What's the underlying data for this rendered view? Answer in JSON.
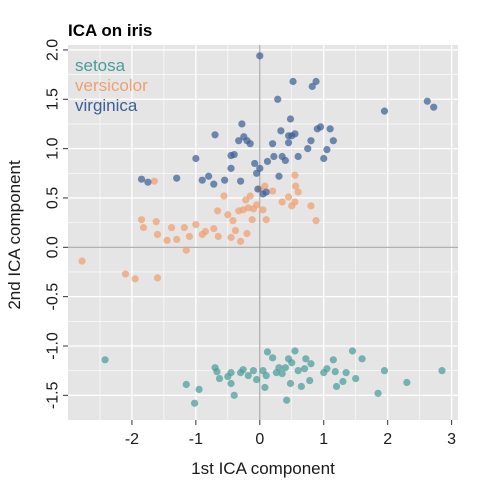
{
  "chart_data": {
    "type": "scatter",
    "title": "ICA on iris",
    "xlabel": "1st ICA component",
    "ylabel": "2nd ICA component",
    "xlim": [
      -3.0,
      3.1
    ],
    "ylim": [
      -1.75,
      2.05
    ],
    "xticks": [
      -2,
      -1,
      0,
      1,
      2,
      3
    ],
    "xtick_labels": [
      "-2",
      "-1",
      "0",
      "1",
      "2",
      "3"
    ],
    "yticks": [
      -1.5,
      -1.0,
      -0.5,
      0.0,
      0.5,
      1.0,
      1.5,
      2.0
    ],
    "ytick_labels": [
      "-1.5",
      "-1.0",
      "-0.5",
      "0.0",
      "0.5",
      "1.0",
      "1.5",
      "2.0"
    ],
    "grid": true,
    "reference_lines": {
      "x": 0,
      "y": 0
    },
    "legend_position": "top-left",
    "colors": {
      "panel": "#e5e5e5",
      "grid": "#ffffff",
      "reference": "#999999"
    },
    "series": [
      {
        "name": "setosa",
        "color": "#4a9c9a",
        "points": [
          [
            -2.42,
            -1.14
          ],
          [
            -1.15,
            -1.39
          ],
          [
            -1.02,
            -1.58
          ],
          [
            -0.95,
            -1.44
          ],
          [
            -0.7,
            -1.22
          ],
          [
            -0.67,
            -1.26
          ],
          [
            -0.63,
            -1.33
          ],
          [
            -0.5,
            -1.31
          ],
          [
            -0.45,
            -1.27
          ],
          [
            -0.45,
            -1.38
          ],
          [
            -0.4,
            -1.5
          ],
          [
            -0.3,
            -1.27
          ],
          [
            -0.26,
            -1.24
          ],
          [
            -0.18,
            -1.3
          ],
          [
            -0.1,
            -1.25
          ],
          [
            -0.05,
            -1.34
          ],
          [
            0.05,
            -1.25
          ],
          [
            0.08,
            -1.42
          ],
          [
            0.1,
            -1.3
          ],
          [
            0.12,
            -1.06
          ],
          [
            0.2,
            -1.12
          ],
          [
            0.26,
            -1.27
          ],
          [
            0.3,
            -1.22
          ],
          [
            0.35,
            -1.28
          ],
          [
            0.4,
            -1.22
          ],
          [
            0.42,
            -1.55
          ],
          [
            0.45,
            -1.13
          ],
          [
            0.48,
            -1.38
          ],
          [
            0.5,
            -1.17
          ],
          [
            0.55,
            -1.05
          ],
          [
            0.6,
            -1.25
          ],
          [
            0.65,
            -1.41
          ],
          [
            0.7,
            -1.23
          ],
          [
            0.72,
            -1.13
          ],
          [
            0.78,
            -1.35
          ],
          [
            0.8,
            -1.18
          ],
          [
            1.0,
            -1.27
          ],
          [
            1.05,
            -1.23
          ],
          [
            1.15,
            -1.14
          ],
          [
            1.18,
            -1.26
          ],
          [
            1.2,
            -1.41
          ],
          [
            1.35,
            -1.27
          ],
          [
            1.45,
            -1.05
          ],
          [
            1.5,
            -1.33
          ],
          [
            1.6,
            -1.13
          ],
          [
            1.85,
            -1.48
          ],
          [
            1.95,
            -1.25
          ],
          [
            2.3,
            -1.37
          ],
          [
            2.85,
            -1.25
          ],
          [
            1.3,
            -1.36
          ]
        ]
      },
      {
        "name": "versicolor",
        "color": "#f0a070",
        "points": [
          [
            -2.78,
            -0.14
          ],
          [
            -2.1,
            -0.27
          ],
          [
            -1.95,
            -0.32
          ],
          [
            -1.85,
            0.28
          ],
          [
            -1.82,
            0.2
          ],
          [
            -1.65,
            0.67
          ],
          [
            -1.62,
            0.26
          ],
          [
            -1.6,
            0.13
          ],
          [
            -1.6,
            -0.31
          ],
          [
            -1.45,
            0.07
          ],
          [
            -1.38,
            0.2
          ],
          [
            -1.3,
            0.08
          ],
          [
            -1.18,
            0.2
          ],
          [
            -1.15,
            -0.03
          ],
          [
            -1.1,
            0.11
          ],
          [
            -1.0,
            0.23
          ],
          [
            -0.9,
            0.13
          ],
          [
            -0.85,
            0.16
          ],
          [
            -0.72,
            0.19
          ],
          [
            -0.66,
            0.37
          ],
          [
            -0.65,
            0.11
          ],
          [
            -0.56,
            0.52
          ],
          [
            -0.5,
            0.33
          ],
          [
            -0.45,
            0.1
          ],
          [
            -0.42,
            0.27
          ],
          [
            -0.38,
            0.17
          ],
          [
            -0.33,
            0.37
          ],
          [
            -0.3,
            0.06
          ],
          [
            -0.26,
            0.38
          ],
          [
            -0.22,
            0.48
          ],
          [
            -0.2,
            0.14
          ],
          [
            -0.18,
            0.4
          ],
          [
            -0.15,
            0.52
          ],
          [
            -0.12,
            0.28
          ],
          [
            -0.1,
            0.39
          ],
          [
            -0.05,
            0.43
          ],
          [
            0.0,
            0.59
          ],
          [
            0.05,
            0.38
          ],
          [
            0.08,
            0.62
          ],
          [
            0.1,
            0.28
          ],
          [
            0.2,
            0.57
          ],
          [
            0.35,
            0.46
          ],
          [
            0.45,
            0.51
          ],
          [
            0.5,
            0.42
          ],
          [
            0.55,
            0.46
          ],
          [
            0.55,
            0.73
          ],
          [
            0.56,
            0.62
          ],
          [
            0.6,
            0.56
          ],
          [
            0.8,
            0.42
          ],
          [
            0.88,
            0.27
          ]
        ]
      },
      {
        "name": "virginica",
        "color": "#3d5f94",
        "points": [
          [
            -1.85,
            0.69
          ],
          [
            -1.75,
            0.66
          ],
          [
            -1.3,
            0.7
          ],
          [
            -1.0,
            0.9
          ],
          [
            -0.9,
            0.68
          ],
          [
            -0.8,
            0.72
          ],
          [
            -0.72,
            0.64
          ],
          [
            -0.7,
            1.14
          ],
          [
            -0.55,
            0.68
          ],
          [
            -0.45,
            0.8
          ],
          [
            -0.45,
            0.93
          ],
          [
            -0.4,
            0.94
          ],
          [
            -0.33,
            1.08
          ],
          [
            -0.3,
            0.67
          ],
          [
            -0.28,
            1.25
          ],
          [
            -0.25,
            1.12
          ],
          [
            -0.2,
            1.08
          ],
          [
            -0.15,
            1.05
          ],
          [
            -0.08,
            0.85
          ],
          [
            -0.05,
            0.75
          ],
          [
            -0.03,
            0.59
          ],
          [
            0.0,
            0.8
          ],
          [
            0.0,
            1.94
          ],
          [
            0.05,
            0.54
          ],
          [
            0.1,
            0.56
          ],
          [
            0.12,
            0.87
          ],
          [
            0.2,
            1.05
          ],
          [
            0.22,
            0.92
          ],
          [
            0.28,
            1.5
          ],
          [
            0.3,
            0.72
          ],
          [
            0.33,
            1.18
          ],
          [
            0.35,
            0.92
          ],
          [
            0.4,
            0.88
          ],
          [
            0.45,
            1.06
          ],
          [
            0.45,
            1.13
          ],
          [
            0.48,
            1.3
          ],
          [
            0.5,
            1.13
          ],
          [
            0.52,
            1.68
          ],
          [
            0.55,
            1.15
          ],
          [
            0.6,
            0.92
          ],
          [
            0.75,
            1.0
          ],
          [
            0.8,
            1.08
          ],
          [
            0.82,
            1.63
          ],
          [
            0.88,
            1.68
          ],
          [
            0.9,
            1.2
          ],
          [
            0.95,
            1.22
          ],
          [
            1.0,
            0.9
          ],
          [
            1.05,
            0.99
          ],
          [
            1.15,
            1.08
          ],
          [
            1.1,
            1.2
          ],
          [
            1.95,
            1.38
          ],
          [
            2.62,
            1.48
          ],
          [
            2.72,
            1.42
          ]
        ]
      }
    ]
  }
}
